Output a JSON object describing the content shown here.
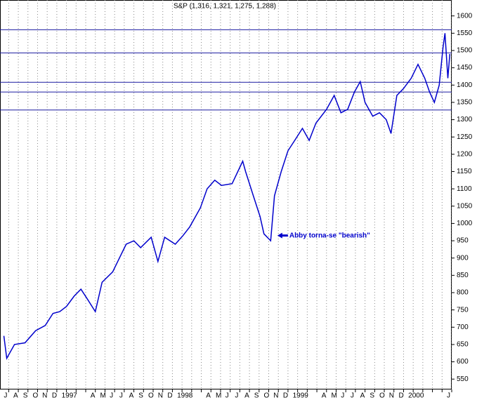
{
  "chart_data": {
    "type": "line",
    "title": "S&P (1,316, 1,321, 1,275, 1,288)",
    "color": "#0000cc",
    "level_color": "#1a1aa0",
    "grid": true,
    "x": [
      -0.5,
      -0.2,
      0.6,
      1.7,
      2.8,
      3.8,
      4.6,
      5.3,
      6.0,
      6.8,
      7.5,
      8.2,
      9.0,
      9.7,
      10.8,
      11.5,
      12.2,
      13.0,
      13.7,
      14.8,
      15.5,
      16.2,
      17.3,
      18.1,
      18.8,
      19.9,
      20.6,
      21.4,
      22.1,
      23.2,
      24.3,
      24.6,
      25.4,
      26.1,
      26.5,
      27.2,
      27.6,
      28.3,
      29.0,
      29.7,
      30.5,
      31.2,
      31.9,
      33.0,
      33.8,
      34.5,
      35.2,
      35.9,
      36.5,
      37.0,
      37.8,
      38.5,
      39.2,
      39.7,
      40.3,
      41.0,
      41.8,
      42.5,
      43.2,
      43.7,
      44.2,
      44.7,
      45.1,
      45.3,
      45.6,
      45.8
    ],
    "values": [
      675,
      610,
      650,
      655,
      690,
      705,
      740,
      745,
      760,
      790,
      810,
      780,
      745,
      830,
      860,
      900,
      940,
      950,
      930,
      960,
      890,
      960,
      940,
      965,
      990,
      1045,
      1100,
      1125,
      1110,
      1115,
      1180,
      1150,
      1080,
      1020,
      970,
      950,
      1080,
      1150,
      1210,
      1240,
      1275,
      1240,
      1290,
      1330,
      1370,
      1320,
      1330,
      1380,
      1410,
      1350,
      1310,
      1320,
      1300,
      1260,
      1370,
      1390,
      1420,
      1460,
      1420,
      1380,
      1350,
      1400,
      1510,
      1550,
      1420,
      1490
    ],
    "levels": [
      1560,
      1493,
      1408,
      1380,
      1328
    ],
    "annotation": {
      "text": "Abby torna-se \"bearish\"",
      "x": 27.9,
      "y": 965
    },
    "xlim": [
      -0.9,
      46
    ],
    "ylim": [
      520,
      1646
    ],
    "yticks": [
      550,
      600,
      650,
      700,
      750,
      800,
      850,
      900,
      950,
      1000,
      1050,
      1100,
      1150,
      1200,
      1250,
      1300,
      1350,
      1400,
      1450,
      1500,
      1550,
      1600
    ],
    "xticks": [
      {
        "value": 0,
        "label": "J"
      },
      {
        "value": 1,
        "label": "A"
      },
      {
        "value": 2,
        "label": "S"
      },
      {
        "value": 3,
        "label": "O"
      },
      {
        "value": 4,
        "label": "N"
      },
      {
        "value": 5,
        "label": "D"
      },
      {
        "value": 6,
        "label": "1997"
      },
      {
        "value": 7,
        "label": null
      },
      {
        "value": 8,
        "label": null
      },
      {
        "value": 9,
        "label": "A"
      },
      {
        "value": 10,
        "label": "M"
      },
      {
        "value": 11,
        "label": "J"
      },
      {
        "value": 12,
        "label": "J"
      },
      {
        "value": 13,
        "label": "A"
      },
      {
        "value": 14,
        "label": "S"
      },
      {
        "value": 15,
        "label": "O"
      },
      {
        "value": 16,
        "label": "N"
      },
      {
        "value": 17,
        "label": "D"
      },
      {
        "value": 18,
        "label": "1998"
      },
      {
        "value": 19,
        "label": null
      },
      {
        "value": 20,
        "label": null
      },
      {
        "value": 21,
        "label": "A"
      },
      {
        "value": 22,
        "label": "M"
      },
      {
        "value": 23,
        "label": "J"
      },
      {
        "value": 24,
        "label": "J"
      },
      {
        "value": 25,
        "label": "A"
      },
      {
        "value": 26,
        "label": "S"
      },
      {
        "value": 27,
        "label": "O"
      },
      {
        "value": 28,
        "label": "N"
      },
      {
        "value": 29,
        "label": "D"
      },
      {
        "value": 30,
        "label": "1999"
      },
      {
        "value": 31,
        "label": null
      },
      {
        "value": 32,
        "label": null
      },
      {
        "value": 33,
        "label": "A"
      },
      {
        "value": 34,
        "label": "M"
      },
      {
        "value": 35,
        "label": "J"
      },
      {
        "value": 36,
        "label": "J"
      },
      {
        "value": 37,
        "label": "A"
      },
      {
        "value": 38,
        "label": "S"
      },
      {
        "value": 39,
        "label": "O"
      },
      {
        "value": 40,
        "label": "N"
      },
      {
        "value": 41,
        "label": "D"
      },
      {
        "value": 42,
        "label": "2000"
      },
      {
        "value": 43,
        "label": null
      },
      {
        "value": 44,
        "label": null
      },
      {
        "value": 45,
        "label": null
      },
      {
        "value": 46,
        "label": "J"
      }
    ]
  }
}
